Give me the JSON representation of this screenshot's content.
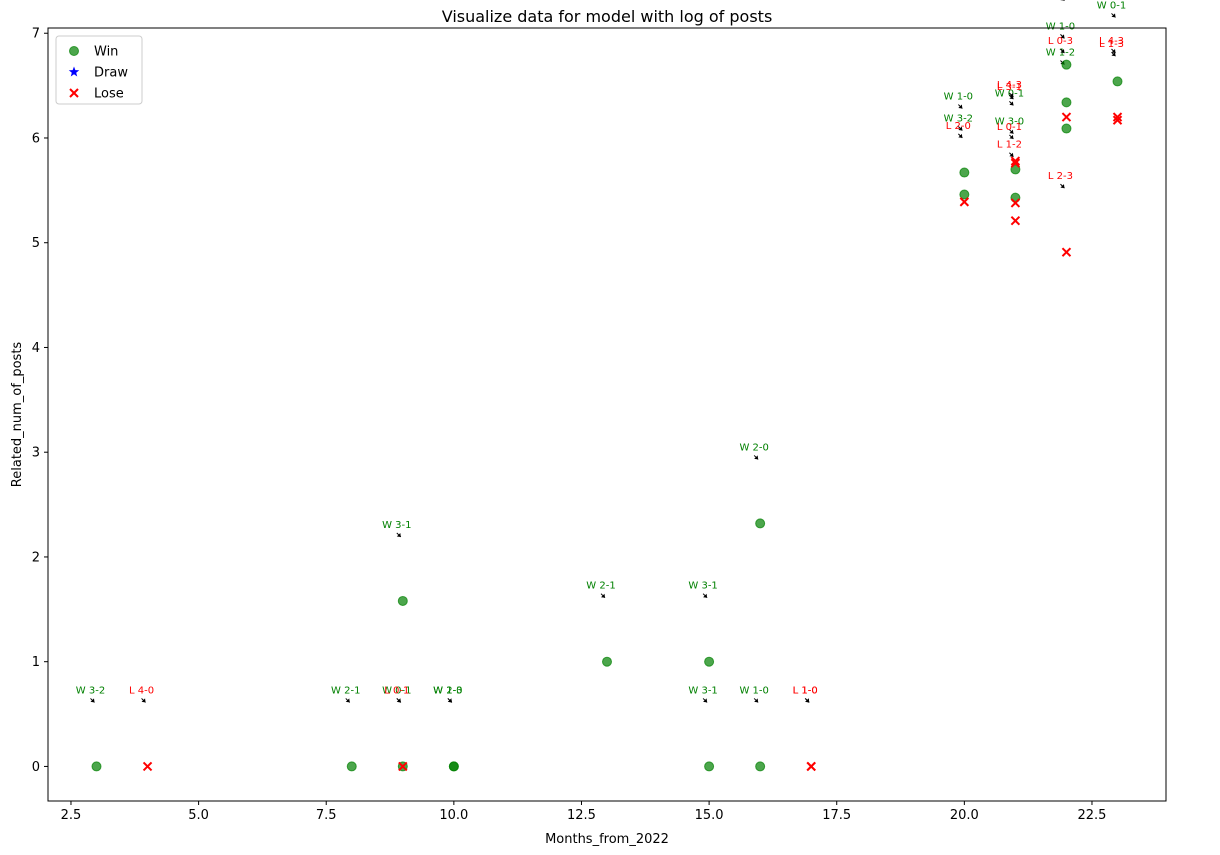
{
  "chart_data": {
    "type": "scatter",
    "title": "Visualize data for model with log of posts",
    "xlabel": "Months_from_2022",
    "ylabel": "Related_num_of_posts",
    "xlim": [
      2.05,
      23.95
    ],
    "ylim": [
      -0.33,
      7.05
    ],
    "xticks": [
      2.5,
      5.0,
      7.5,
      10.0,
      12.5,
      15.0,
      17.5,
      20.0,
      22.5
    ],
    "xtick_labels": [
      "2.5",
      "5.0",
      "7.5",
      "10.0",
      "12.5",
      "15.0",
      "17.5",
      "20.0",
      "22.5"
    ],
    "yticks": [
      0,
      1,
      2,
      3,
      4,
      5,
      6,
      7
    ],
    "ytick_labels": [
      "0",
      "1",
      "2",
      "3",
      "4",
      "5",
      "6",
      "7"
    ],
    "grid": false,
    "legend_position": "top-left",
    "legend": [
      {
        "label": "Win",
        "marker": "circle",
        "color": "#008000"
      },
      {
        "label": "Draw",
        "marker": "star",
        "color": "#0000ff"
      },
      {
        "label": "Lose",
        "marker": "x",
        "color": "#ff0000"
      }
    ],
    "colors": {
      "Win": "#008000",
      "Draw": "#0000ff",
      "Lose": "#ff0000"
    },
    "series": [
      {
        "name": "Win",
        "points": [
          {
            "x": 3,
            "y": 0,
            "label": "W 3-2"
          },
          {
            "x": 8,
            "y": 0,
            "label": "W 2-1"
          },
          {
            "x": 9,
            "y": 0,
            "label": "W 0-1"
          },
          {
            "x": 9,
            "y": 1.58,
            "label": "W 3-1"
          },
          {
            "x": 10,
            "y": 0,
            "label": "W 1-3"
          },
          {
            "x": 10,
            "y": 0,
            "label": "W 2-0"
          },
          {
            "x": 13,
            "y": 1.0,
            "label": "W 2-1"
          },
          {
            "x": 15,
            "y": 1.0,
            "label": "W 3-1"
          },
          {
            "x": 15,
            "y": 0,
            "label": "W 3-1"
          },
          {
            "x": 16,
            "y": 2.32,
            "label": "W 2-0"
          },
          {
            "x": 16,
            "y": 0,
            "label": "W 1-0"
          },
          {
            "x": 20,
            "y": 5.67,
            "label": "W 1-0"
          },
          {
            "x": 20,
            "y": 5.46,
            "label": "W 3-2"
          },
          {
            "x": 21,
            "y": 5.7,
            "label": "W 0-1"
          },
          {
            "x": 21,
            "y": 5.43,
            "label": "W 3-0"
          },
          {
            "x": 22,
            "y": 6.7,
            "label": "W 2-1"
          },
          {
            "x": 22,
            "y": 6.34,
            "label": "W 1-0"
          },
          {
            "x": 22,
            "y": 6.09,
            "label": "W 1-2"
          },
          {
            "x": 23,
            "y": 6.54,
            "label": "W 0-1"
          }
        ]
      },
      {
        "name": "Lose",
        "points": [
          {
            "x": 4,
            "y": 0,
            "label": "L 4-0"
          },
          {
            "x": 9,
            "y": 0,
            "label": "L 0-1"
          },
          {
            "x": 17,
            "y": 0,
            "label": "L 1-0"
          },
          {
            "x": 17,
            "y": 0,
            "label": "L 1-0"
          },
          {
            "x": 20,
            "y": 5.39,
            "label": "L 2-0"
          },
          {
            "x": 21,
            "y": 5.78,
            "label": "L 4-3"
          },
          {
            "x": 21,
            "y": 5.76,
            "label": "L 3-1"
          },
          {
            "x": 21,
            "y": 5.38,
            "label": "L 0-1"
          },
          {
            "x": 21,
            "y": 5.21,
            "label": "L 1-2"
          },
          {
            "x": 22,
            "y": 6.2,
            "label": "L 0-3"
          },
          {
            "x": 22,
            "y": 4.91,
            "label": "L 2-3"
          },
          {
            "x": 23,
            "y": 6.2,
            "label": "L 4-3"
          },
          {
            "x": 23,
            "y": 6.17,
            "label": "L 1-3"
          }
        ]
      }
    ]
  }
}
